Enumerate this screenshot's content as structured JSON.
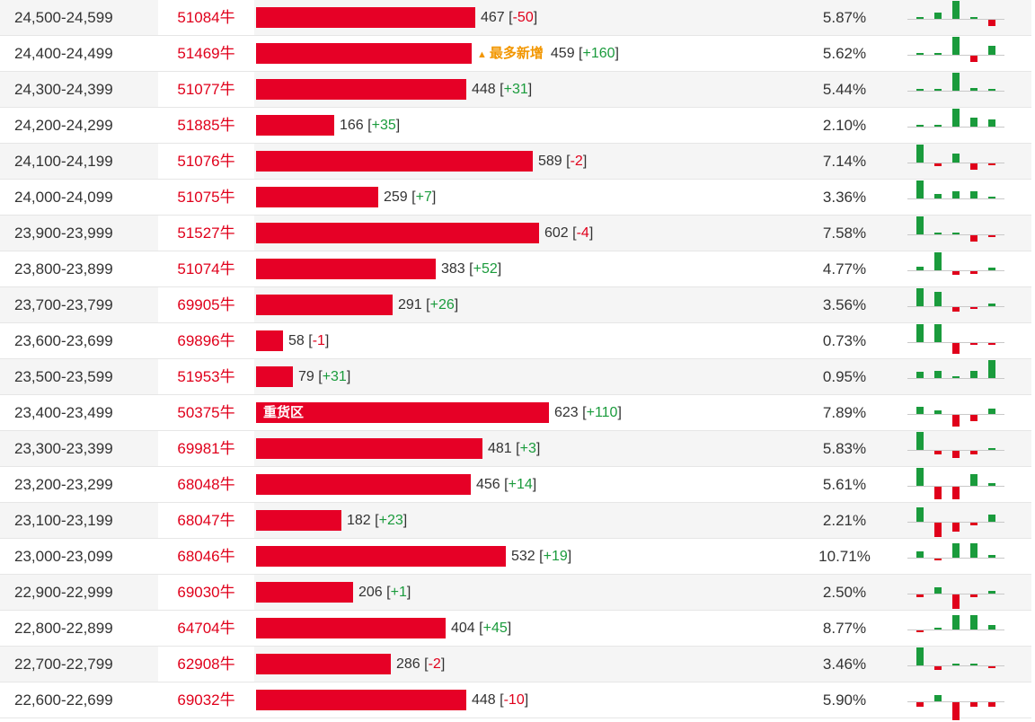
{
  "colors": {
    "bar": "#e60026",
    "price_id": "#e0001b",
    "positive": "#1a9b3c",
    "negative": "#e0001b",
    "tag": "#f29600"
  },
  "scale_max": 623,
  "rows": [
    {
      "range": "24,500-24,599",
      "id": "51084牛",
      "count": "467",
      "change": "-50",
      "pct": "5.87%",
      "minis": [
        0,
        1,
        3,
        0,
        -1
      ]
    },
    {
      "range": "24,400-24,499",
      "id": "51469牛",
      "count": "459",
      "change": "+160",
      "pct": "5.62%",
      "tag": "最多新增",
      "minis": [
        0,
        0,
        3,
        -1,
        1.5
      ]
    },
    {
      "range": "24,300-24,399",
      "id": "51077牛",
      "count": "448",
      "change": "+31",
      "pct": "5.44%",
      "minis": [
        0,
        0,
        3,
        0.5,
        0.3
      ]
    },
    {
      "range": "24,200-24,299",
      "id": "51885牛",
      "count": "166",
      "change": "+35",
      "pct": "2.10%",
      "minis": [
        0,
        0,
        3,
        1.5,
        1.2
      ]
    },
    {
      "range": "24,100-24,199",
      "id": "51076牛",
      "count": "589",
      "change": "-2",
      "pct": "7.14%",
      "minis": [
        3,
        -0.5,
        1.5,
        -1,
        -0.3
      ]
    },
    {
      "range": "24,000-24,099",
      "id": "51075牛",
      "count": "259",
      "change": "+7",
      "pct": "3.36%",
      "minis": [
        3,
        0.8,
        1.2,
        1.3,
        0.3
      ]
    },
    {
      "range": "23,900-23,999",
      "id": "51527牛",
      "count": "602",
      "change": "-4",
      "pct": "7.58%",
      "minis": [
        3,
        0.2,
        0.2,
        -1,
        -0.2
      ]
    },
    {
      "range": "23,800-23,899",
      "id": "51074牛",
      "count": "383",
      "change": "+52",
      "pct": "4.77%",
      "minis": [
        0.6,
        3,
        -0.6,
        -0.4,
        0.5
      ]
    },
    {
      "range": "23,700-23,799",
      "id": "69905牛",
      "count": "291",
      "change": "+26",
      "pct": "3.56%",
      "minis": [
        3,
        2.5,
        -0.8,
        -0.2,
        0.4
      ]
    },
    {
      "range": "23,600-23,699",
      "id": "69896牛",
      "count": "58",
      "change": "-1",
      "pct": "0.73%",
      "minis": [
        3,
        3,
        -1.8,
        -0.2,
        -0.2
      ]
    },
    {
      "range": "23,500-23,599",
      "id": "51953牛",
      "count": "79",
      "change": "+31",
      "pct": "0.95%",
      "minis": [
        1,
        1.2,
        0.3,
        1.2,
        3
      ]
    },
    {
      "range": "23,400-23,499",
      "id": "50375牛",
      "count": "623",
      "change": "+110",
      "pct": "7.89%",
      "label": "重货区",
      "minis": [
        1.3,
        0.6,
        -2,
        -1,
        0.9
      ]
    },
    {
      "range": "23,300-23,399",
      "id": "69981牛",
      "count": "481",
      "change": "+3",
      "pct": "5.83%",
      "minis": [
        3,
        -0.6,
        -1.2,
        -0.6,
        0.3
      ]
    },
    {
      "range": "23,200-23,299",
      "id": "68048牛",
      "count": "456",
      "change": "+14",
      "pct": "5.61%",
      "minis": [
        3,
        -2.2,
        -2.2,
        2,
        0.5
      ]
    },
    {
      "range": "23,100-23,199",
      "id": "68047牛",
      "count": "182",
      "change": "+23",
      "pct": "2.21%",
      "minis": [
        2.5,
        -2.5,
        -1.5,
        -0.4,
        1.3
      ]
    },
    {
      "range": "23,000-23,099",
      "id": "68046牛",
      "count": "532",
      "change": "+19",
      "pct": "10.71%",
      "minis": [
        1,
        -0.3,
        2.5,
        2.5,
        0.5
      ]
    },
    {
      "range": "22,900-22,999",
      "id": "69030牛",
      "count": "206",
      "change": "+1",
      "pct": "2.50%",
      "minis": [
        -0.5,
        1.1,
        -2.5,
        -0.5,
        0.4
      ]
    },
    {
      "range": "22,800-22,899",
      "id": "64704牛",
      "count": "404",
      "change": "+45",
      "pct": "8.77%",
      "minis": [
        -0.2,
        0.3,
        2.5,
        2.5,
        0.7
      ]
    },
    {
      "range": "22,700-22,799",
      "id": "62908牛",
      "count": "286",
      "change": "-2",
      "pct": "3.46%",
      "minis": [
        3,
        -0.6,
        0,
        0.3,
        -0.2
      ]
    },
    {
      "range": "22,600-22,699",
      "id": "69032牛",
      "count": "448",
      "change": "-10",
      "pct": "5.90%",
      "minis": [
        -0.7,
        1,
        -3,
        -0.7,
        -0.7
      ]
    }
  ]
}
